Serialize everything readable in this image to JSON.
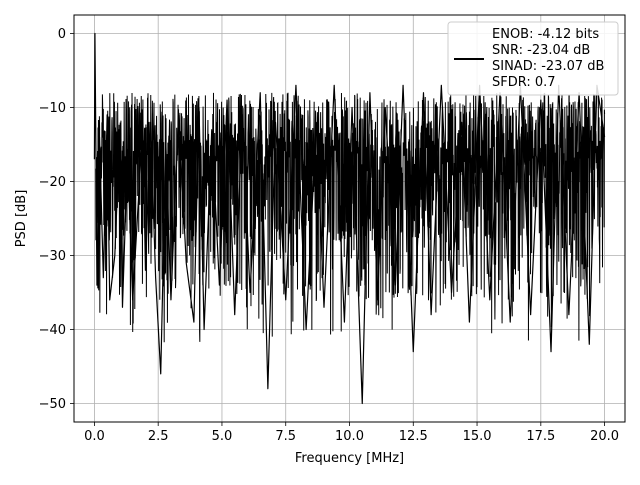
{
  "chart_data": {
    "type": "line",
    "title": "",
    "xlabel": "Frequency [MHz]",
    "ylabel": "PSD [dB]",
    "xlim": [
      -0.8,
      20.8
    ],
    "ylim": [
      -52.5,
      2.5
    ],
    "xticks": [
      0.0,
      2.5,
      5.0,
      7.5,
      10.0,
      12.5,
      15.0,
      17.5,
      20.0
    ],
    "xtick_labels": [
      "0.0",
      "2.5",
      "5.0",
      "7.5",
      "10.0",
      "12.5",
      "15.0",
      "17.5",
      "20.0"
    ],
    "yticks": [
      0,
      -10,
      -20,
      -30,
      -40,
      -50
    ],
    "ytick_labels": [
      "0",
      "−10",
      "−20",
      "−30",
      "−40",
      "−50"
    ],
    "grid": true,
    "legend_position": "top-right",
    "line_color": "#000000",
    "series": [
      {
        "x": [
          0.0,
          0.02,
          0.05,
          0.1,
          0.2,
          0.35,
          0.5,
          0.6,
          0.8,
          1.0,
          1.1,
          1.3,
          1.5,
          1.9,
          2.0,
          2.2,
          2.4,
          2.6,
          2.8,
          3.0,
          3.3,
          3.6,
          3.9,
          4.1,
          4.3,
          4.6,
          4.9,
          5.2,
          5.5,
          5.8,
          6.1,
          6.5,
          6.8,
          7.1,
          7.5,
          7.9,
          8.3,
          8.7,
          9.0,
          9.4,
          9.8,
          10.1,
          10.5,
          10.8,
          11.1,
          11.4,
          11.8,
          12.1,
          12.5,
          12.9,
          13.2,
          13.6,
          14.0,
          14.4,
          14.7,
          15.1,
          15.5,
          15.9,
          16.3,
          16.7,
          17.1,
          17.5,
          17.9,
          18.2,
          18.6,
          19.0,
          19.4,
          19.7,
          20.0
        ],
        "y": [
          -17,
          0,
          -12,
          -34,
          -14,
          -33,
          -11,
          -36,
          -30,
          -13,
          -37,
          -16,
          -36,
          -12,
          -32,
          -12,
          -33,
          -46,
          -15,
          -36,
          -11,
          -31,
          -39,
          -10,
          -40,
          -13,
          -34,
          -9,
          -38,
          -11,
          -35,
          -8,
          -48,
          -12,
          -36,
          -7,
          -40,
          -12,
          -37,
          -7,
          -39,
          -10,
          -50,
          -8,
          -36,
          -10,
          -34,
          -7,
          -43,
          -8,
          -38,
          -7,
          -35,
          -12,
          -39,
          -7,
          -36,
          -8,
          -39,
          -7,
          -38,
          -9,
          -43,
          -7,
          -38,
          -8,
          -42,
          -7,
          -14
        ]
      }
    ],
    "legend_lines": [
      "ENOB: -4.12 bits",
      "SNR: -23.04 dB",
      "SINAD: -23.07 dB",
      "SFDR: 0.7"
    ]
  }
}
